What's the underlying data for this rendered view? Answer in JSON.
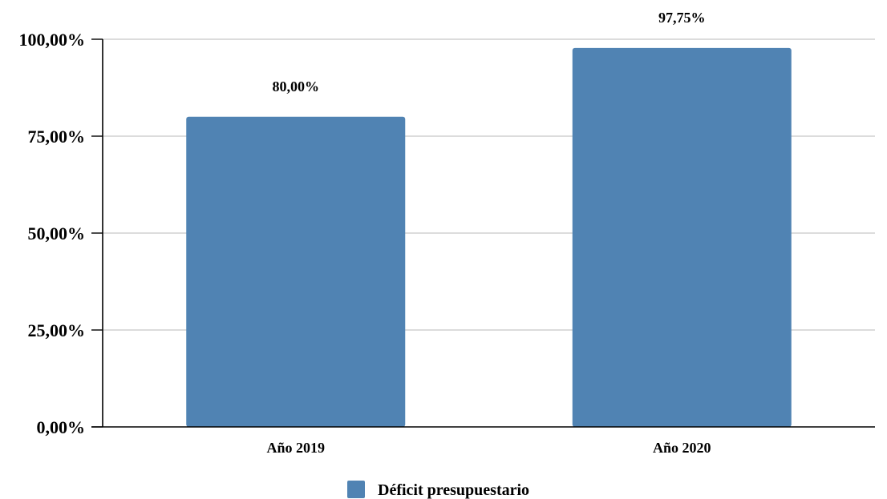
{
  "chart_data": {
    "type": "bar",
    "title": "",
    "categories": [
      "Año 2019",
      "Año 2020"
    ],
    "series": [
      {
        "name": "Déficit presupuestario",
        "values": [
          80.0,
          97.75
        ],
        "labels": [
          "80,00%",
          "97,75%"
        ],
        "color": "#5083b3"
      }
    ],
    "xlabel": "",
    "ylabel": "",
    "ylim": [
      0,
      100
    ],
    "yticks": [
      0,
      25,
      50,
      75,
      100
    ],
    "ytick_labels": [
      "0,00%",
      "25,00%",
      "50,00%",
      "75,00%",
      "100,00%"
    ],
    "grid": true,
    "legend_position": "bottom"
  }
}
